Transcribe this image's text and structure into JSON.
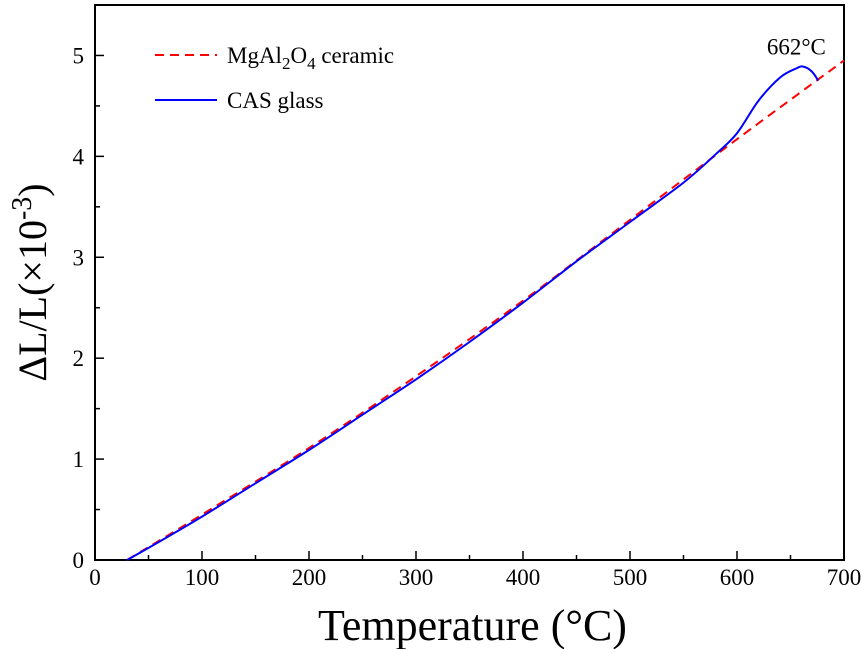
{
  "chart_data": {
    "type": "line",
    "xlabel": "Temperature (°C)",
    "ylabel_parts": {
      "base": "ΔL/L(×10",
      "sup": "-3",
      "close": ")"
    },
    "xlim": [
      0,
      700
    ],
    "ylim": [
      0,
      5.5
    ],
    "x_ticks": [
      0,
      100,
      200,
      300,
      400,
      500,
      600,
      700
    ],
    "y_ticks": [
      0,
      1,
      2,
      3,
      4,
      5
    ],
    "grid": false,
    "legend_position": "top-left",
    "series": [
      {
        "name": "MgAl2O4 ceramic",
        "name_parts": [
          {
            "t": "MgAl",
            "sub": false
          },
          {
            "t": "2",
            "sub": true
          },
          {
            "t": "O",
            "sub": false
          },
          {
            "t": "4",
            "sub": true
          },
          {
            "t": " ceramic",
            "sub": false
          }
        ],
        "color": "#ff0000",
        "style": "dashed",
        "x": [
          30,
          100,
          200,
          300,
          400,
          500,
          600,
          700
        ],
        "y": [
          0.0,
          0.45,
          1.11,
          1.82,
          2.57,
          3.37,
          4.17,
          4.95
        ]
      },
      {
        "name": "CAS glass",
        "color": "#0000ff",
        "style": "solid",
        "x": [
          30,
          50,
          100,
          150,
          200,
          250,
          300,
          350,
          400,
          450,
          500,
          550,
          580,
          600,
          620,
          640,
          655,
          662,
          670,
          676
        ],
        "y": [
          0.0,
          0.12,
          0.43,
          0.76,
          1.09,
          1.44,
          1.79,
          2.16,
          2.55,
          2.96,
          3.35,
          3.74,
          4.02,
          4.23,
          4.55,
          4.78,
          4.87,
          4.89,
          4.84,
          4.75
        ]
      }
    ],
    "annotations": [
      {
        "text": "662°C",
        "x": 662,
        "y": 4.89
      }
    ]
  }
}
